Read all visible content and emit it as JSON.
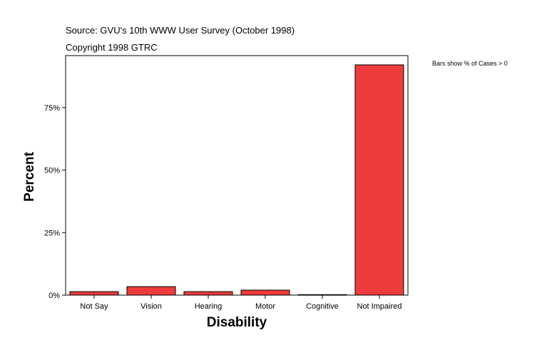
{
  "chart_data": {
    "type": "bar",
    "title": "Source: GVU's 10th WWW User Survey (October 1998)",
    "subtitle": "Copyright 1998 GTRC",
    "annotation": "Bars show % of Cases > 0",
    "xlabel": "Disability",
    "ylabel": "Percent",
    "categories": [
      "Not Say",
      "Vision",
      "Hearing",
      "Motor",
      "Cognitive",
      "Not Impaired"
    ],
    "values": [
      1.4,
      3.4,
      1.4,
      2.0,
      0.2,
      92.1
    ],
    "yticks": [
      0,
      25,
      50,
      75
    ],
    "ytick_labels": [
      "0%",
      "25%",
      "50%",
      "75%"
    ],
    "ylim": [
      0,
      95.8
    ],
    "grid": false,
    "bar_color": "#ef3b3b"
  }
}
